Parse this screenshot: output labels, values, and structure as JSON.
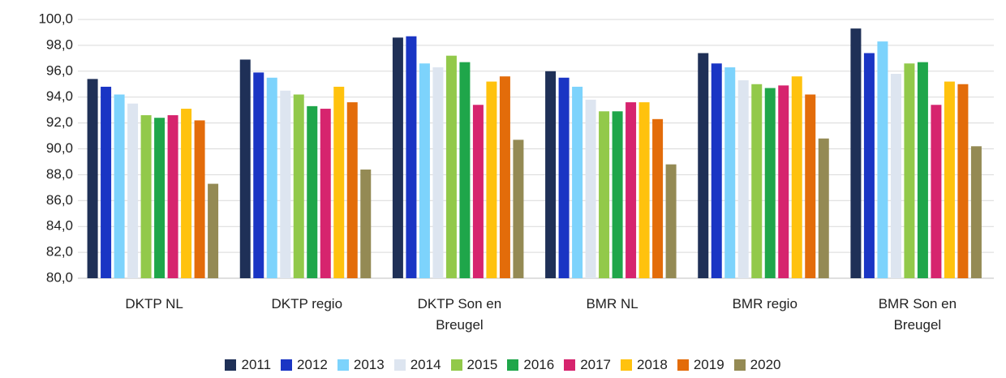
{
  "chart_data": {
    "type": "bar",
    "categories": [
      "DKTP NL",
      "DKTP regio",
      "DKTP Son en Breugel",
      "BMR NL",
      "BMR regio",
      "BMR Son en Breugel"
    ],
    "series": [
      {
        "name": "2011",
        "color": "#1f3057",
        "values": [
          95.4,
          96.9,
          98.6,
          96.0,
          97.4,
          99.3
        ]
      },
      {
        "name": "2012",
        "color": "#1a35c4",
        "values": [
          94.8,
          95.9,
          98.7,
          95.5,
          96.6,
          97.4
        ]
      },
      {
        "name": "2013",
        "color": "#7dd3fc",
        "values": [
          94.2,
          95.5,
          96.6,
          94.8,
          96.3,
          98.3
        ]
      },
      {
        "name": "2014",
        "color": "#dde5f0",
        "values": [
          93.5,
          94.5,
          96.3,
          93.8,
          95.3,
          95.8
        ]
      },
      {
        "name": "2015",
        "color": "#92c94a",
        "values": [
          92.6,
          94.2,
          97.2,
          92.9,
          95.0,
          96.6
        ]
      },
      {
        "name": "2016",
        "color": "#1fa64a",
        "values": [
          92.4,
          93.3,
          96.7,
          92.9,
          94.7,
          96.7
        ]
      },
      {
        "name": "2017",
        "color": "#d6246e",
        "values": [
          92.6,
          93.1,
          93.4,
          93.6,
          94.9,
          93.4
        ]
      },
      {
        "name": "2018",
        "color": "#ffc20e",
        "values": [
          93.1,
          94.8,
          95.2,
          93.6,
          95.6,
          95.2
        ]
      },
      {
        "name": "2019",
        "color": "#e36c0a",
        "values": [
          92.2,
          93.6,
          95.6,
          92.3,
          94.2,
          95.0
        ]
      },
      {
        "name": "2020",
        "color": "#948a54",
        "values": [
          87.3,
          88.4,
          90.7,
          88.8,
          90.8,
          90.2
        ]
      }
    ],
    "ylim": [
      80,
      100
    ],
    "yticks": [
      {
        "value": 80,
        "label": "80,0"
      },
      {
        "value": 82,
        "label": "82,0"
      },
      {
        "value": 84,
        "label": "84,0"
      },
      {
        "value": 86,
        "label": "86,0"
      },
      {
        "value": 88,
        "label": "88,0"
      },
      {
        "value": 90,
        "label": "90,0"
      },
      {
        "value": 92,
        "label": "92,0"
      },
      {
        "value": 94,
        "label": "94,0"
      },
      {
        "value": 96,
        "label": "96,0"
      },
      {
        "value": 98,
        "label": "98,0"
      },
      {
        "value": 100,
        "label": "100,0"
      }
    ],
    "grid": true,
    "legend": "bottom"
  }
}
